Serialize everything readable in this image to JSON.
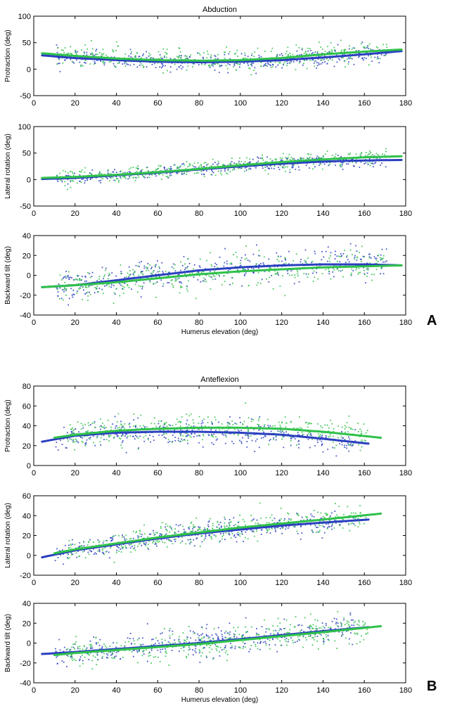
{
  "panels": [
    {
      "letter": "A",
      "title": "Abduction"
    },
    {
      "letter": "B",
      "title": "Anteflexion"
    }
  ],
  "colors": {
    "series1": "#2a3fbf",
    "series2": "#2fc14a",
    "axis": "#000000"
  },
  "chart_data": [
    {
      "type": "scatter",
      "panel": "A",
      "title": "Abduction",
      "xlabel": "",
      "ylabel": "Protraction (deg)",
      "xlim": [
        0,
        180
      ],
      "ylim": [
        -50,
        100
      ],
      "xticks": [
        0,
        20,
        40,
        60,
        80,
        100,
        120,
        140,
        160,
        180
      ],
      "yticks": [
        -50,
        0,
        50,
        100
      ],
      "series": [
        {
          "color": "blue",
          "scatter_spread": 8,
          "x": [
            4,
            20,
            40,
            60,
            80,
            100,
            120,
            140,
            160,
            178
          ],
          "y": [
            26,
            21,
            17,
            14,
            13,
            14,
            17,
            22,
            28,
            34
          ]
        },
        {
          "color": "green",
          "scatter_spread": 10,
          "x": [
            4,
            20,
            40,
            60,
            80,
            100,
            120,
            140,
            160,
            178
          ],
          "y": [
            30,
            25,
            20,
            17,
            16,
            17,
            21,
            28,
            33,
            37
          ]
        }
      ]
    },
    {
      "type": "scatter",
      "panel": "A",
      "title": "",
      "xlabel": "",
      "ylabel": "Lateral rotation (deg)",
      "xlim": [
        0,
        180
      ],
      "ylim": [
        -50,
        100
      ],
      "xticks": [
        0,
        20,
        40,
        60,
        80,
        100,
        120,
        140,
        160,
        180
      ],
      "yticks": [
        -50,
        0,
        50,
        100
      ],
      "series": [
        {
          "color": "blue",
          "scatter_spread": 6,
          "x": [
            4,
            20,
            40,
            60,
            80,
            100,
            120,
            140,
            160,
            178
          ],
          "y": [
            1,
            3,
            8,
            13,
            19,
            25,
            30,
            34,
            36,
            37
          ]
        },
        {
          "color": "green",
          "scatter_spread": 7,
          "x": [
            4,
            20,
            40,
            60,
            80,
            100,
            120,
            140,
            160,
            178
          ],
          "y": [
            3,
            5,
            9,
            14,
            20,
            27,
            33,
            38,
            42,
            44
          ]
        }
      ]
    },
    {
      "type": "scatter",
      "panel": "A",
      "title": "",
      "xlabel": "Humerus elevation (deg)",
      "ylabel": "Backward tilt (deg)",
      "xlim": [
        0,
        180
      ],
      "ylim": [
        -40,
        40
      ],
      "xticks": [
        0,
        20,
        40,
        60,
        80,
        100,
        120,
        140,
        160,
        180
      ],
      "yticks": [
        -40,
        -20,
        0,
        20,
        40
      ],
      "series": [
        {
          "color": "blue",
          "scatter_spread": 8,
          "x": [
            4,
            20,
            40,
            60,
            80,
            100,
            120,
            140,
            160,
            178
          ],
          "y": [
            -12,
            -10,
            -5,
            0,
            5,
            8,
            10,
            11,
            11,
            10
          ]
        },
        {
          "color": "green",
          "scatter_spread": 8,
          "x": [
            4,
            20,
            40,
            60,
            80,
            100,
            120,
            140,
            160,
            178
          ],
          "y": [
            -12,
            -10,
            -7,
            -3,
            1,
            4,
            6,
            8,
            9,
            10
          ]
        }
      ]
    },
    {
      "type": "scatter",
      "panel": "B",
      "title": "Anteflexion",
      "xlabel": "",
      "ylabel": "Protraction (deg)",
      "xlim": [
        0,
        180
      ],
      "ylim": [
        0,
        80
      ],
      "xticks": [
        0,
        20,
        40,
        60,
        80,
        100,
        120,
        140,
        160,
        180
      ],
      "yticks": [
        0,
        20,
        40,
        60,
        80
      ],
      "series": [
        {
          "color": "blue",
          "scatter_spread": 6,
          "x": [
            4,
            20,
            40,
            60,
            80,
            100,
            120,
            140,
            162
          ],
          "y": [
            24,
            30,
            33,
            34,
            34,
            33,
            31,
            27,
            22
          ]
        },
        {
          "color": "green",
          "scatter_spread": 7,
          "x": [
            10,
            20,
            40,
            60,
            80,
            100,
            120,
            140,
            168
          ],
          "y": [
            28,
            31,
            35,
            37,
            38,
            38,
            37,
            34,
            28
          ]
        }
      ]
    },
    {
      "type": "scatter",
      "panel": "B",
      "title": "",
      "xlabel": "",
      "ylabel": "Lateral rotation (deg)",
      "xlim": [
        0,
        180
      ],
      "ylim": [
        -20,
        60
      ],
      "xticks": [
        0,
        20,
        40,
        60,
        80,
        100,
        120,
        140,
        160,
        180
      ],
      "yticks": [
        -20,
        0,
        20,
        40,
        60
      ],
      "series": [
        {
          "color": "blue",
          "scatter_spread": 5,
          "x": [
            4,
            20,
            40,
            60,
            80,
            100,
            120,
            140,
            162
          ],
          "y": [
            -2,
            5,
            11,
            17,
            22,
            26,
            30,
            33,
            36
          ]
        },
        {
          "color": "green",
          "scatter_spread": 6,
          "x": [
            10,
            20,
            40,
            60,
            80,
            100,
            120,
            140,
            168
          ],
          "y": [
            2,
            6,
            12,
            18,
            23,
            28,
            32,
            36,
            42
          ]
        }
      ]
    },
    {
      "type": "scatter",
      "panel": "B",
      "title": "",
      "xlabel": "Humerus elevation (deg)",
      "ylabel": "Backward tilt (deg)",
      "xlim": [
        0,
        180
      ],
      "ylim": [
        -40,
        40
      ],
      "xticks": [
        0,
        20,
        40,
        60,
        80,
        100,
        120,
        140,
        160,
        180
      ],
      "yticks": [
        -40,
        -20,
        0,
        20,
        40
      ],
      "series": [
        {
          "color": "blue",
          "scatter_spread": 7,
          "x": [
            4,
            20,
            40,
            60,
            80,
            100,
            120,
            140,
            162
          ],
          "y": [
            -11,
            -9,
            -6,
            -3,
            0,
            4,
            8,
            12,
            16
          ]
        },
        {
          "color": "green",
          "scatter_spread": 7,
          "x": [
            10,
            20,
            40,
            60,
            80,
            100,
            120,
            140,
            168
          ],
          "y": [
            -12,
            -10,
            -7,
            -4,
            -1,
            3,
            7,
            11,
            17
          ]
        }
      ]
    }
  ]
}
